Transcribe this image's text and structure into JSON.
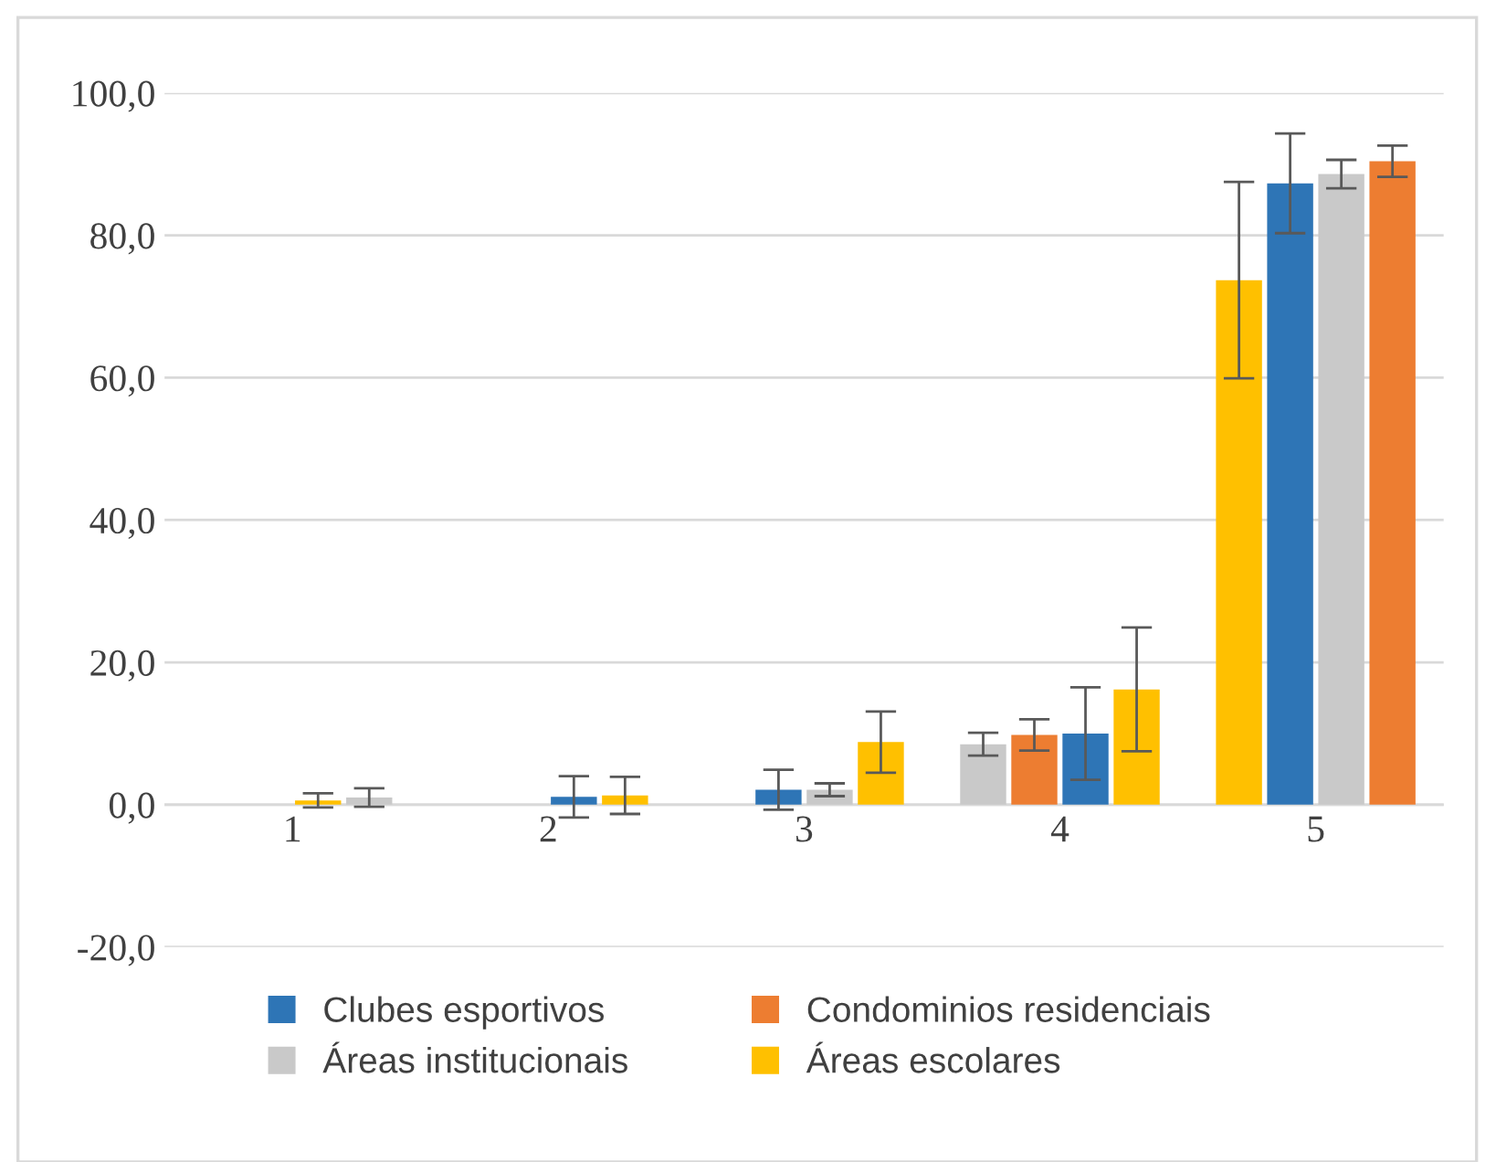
{
  "chart_data": {
    "type": "bar",
    "categories": [
      "1",
      "2",
      "3",
      "4",
      "5"
    ],
    "series": [
      {
        "name": "Clubes esportivos",
        "color": "#2e75b6",
        "values": [
          0,
          1.1,
          2.1,
          10.0,
          87.3
        ],
        "errors": [
          null,
          2.9,
          2.8,
          6.5,
          7.0
        ]
      },
      {
        "name": "Condominios residenciais",
        "color": "#ed7d31",
        "values": [
          0,
          0,
          0,
          9.8,
          90.4
        ],
        "errors": [
          null,
          null,
          null,
          2.2,
          2.2
        ]
      },
      {
        "name": "Áreas institucionais",
        "color": "#c9c9c9",
        "values": [
          1.0,
          0,
          2.1,
          8.5,
          88.6
        ],
        "errors": [
          1.3,
          null,
          0.9,
          1.6,
          2.0
        ]
      },
      {
        "name": "Áreas escolares",
        "color": "#ffc000",
        "values": [
          0.6,
          1.3,
          8.8,
          16.2,
          73.7
        ],
        "errors": [
          1.0,
          2.6,
          4.3,
          8.7,
          13.8
        ]
      }
    ],
    "ylim": [
      -20,
      100
    ],
    "yticks": [
      {
        "value": -20,
        "label": "-20,0"
      },
      {
        "value": 0,
        "label": "0,0"
      },
      {
        "value": 20,
        "label": "20,0"
      },
      {
        "value": 40,
        "label": "40,0"
      },
      {
        "value": 60,
        "label": "60,0"
      },
      {
        "value": 80,
        "label": "80,0"
      },
      {
        "value": 100,
        "label": "100,0"
      }
    ],
    "grid": "y",
    "legend": "bottom"
  }
}
